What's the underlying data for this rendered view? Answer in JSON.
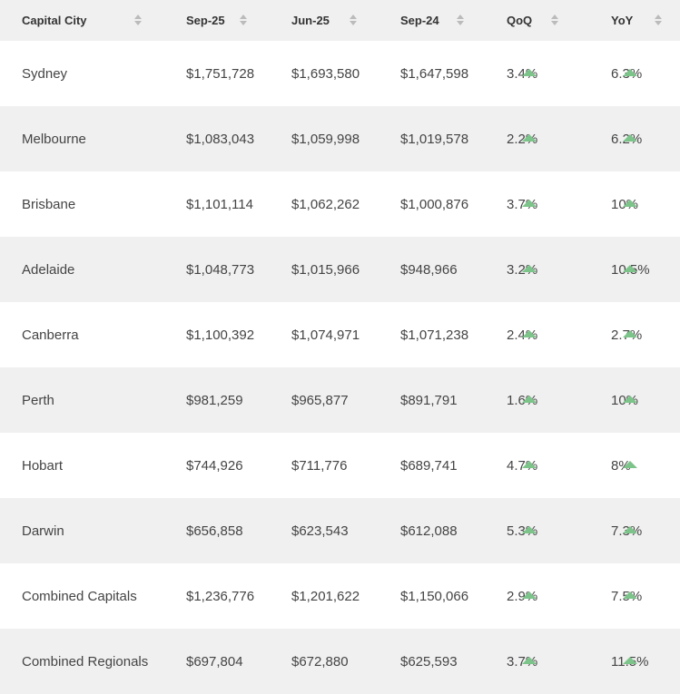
{
  "table": {
    "headers": {
      "city": "Capital City",
      "sep25": "Sep-25",
      "jun25": "Jun-25",
      "sep24": "Sep-24",
      "qoq": "QoQ",
      "yoy": "YoY"
    },
    "rows": [
      {
        "city": "Sydney",
        "sep25": "$1,751,728",
        "jun25": "$1,693,580",
        "sep24": "$1,647,598",
        "qoq": "3.4%",
        "yoy": "6.3%"
      },
      {
        "city": "Melbourne",
        "sep25": "$1,083,043",
        "jun25": "$1,059,998",
        "sep24": "$1,019,578",
        "qoq": "2.2%",
        "yoy": "6.2%"
      },
      {
        "city": "Brisbane",
        "sep25": "$1,101,114",
        "jun25": "$1,062,262",
        "sep24": "$1,000,876",
        "qoq": "3.7%",
        "yoy": "10%"
      },
      {
        "city": "Adelaide",
        "sep25": "$1,048,773",
        "jun25": "$1,015,966",
        "sep24": "$948,966",
        "qoq": "3.2%",
        "yoy": "10.5%"
      },
      {
        "city": "Canberra",
        "sep25": "$1,100,392",
        "jun25": "$1,074,971",
        "sep24": "$1,071,238",
        "qoq": "2.4%",
        "yoy": "2.7%"
      },
      {
        "city": "Perth",
        "sep25": "$981,259",
        "jun25": "$965,877",
        "sep24": "$891,791",
        "qoq": "1.6%",
        "yoy": "10%"
      },
      {
        "city": "Hobart",
        "sep25": "$744,926",
        "jun25": "$711,776",
        "sep24": "$689,741",
        "qoq": "4.7%",
        "yoy": "8%"
      },
      {
        "city": "Darwin",
        "sep25": "$656,858",
        "jun25": "$623,543",
        "sep24": "$612,088",
        "qoq": "5.3%",
        "yoy": "7.3%"
      },
      {
        "city": "Combined Capitals",
        "sep25": "$1,236,776",
        "jun25": "$1,201,622",
        "sep24": "$1,150,066",
        "qoq": "2.9%",
        "yoy": "7.5%"
      },
      {
        "city": "Combined Regionals",
        "sep25": "$697,804",
        "jun25": "$672,880",
        "sep24": "$625,593",
        "qoq": "3.7%",
        "yoy": "11.5%"
      }
    ]
  },
  "icons": {
    "sort": "sort-icon",
    "trend_up": "trend-up-icon"
  },
  "colors": {
    "header_bg": "#f0f0f0",
    "stripe_bg": "#f0f0f0",
    "arrow_up": "#7cc48a",
    "sort_icon": "#bbbbbb",
    "text": "#444444"
  }
}
